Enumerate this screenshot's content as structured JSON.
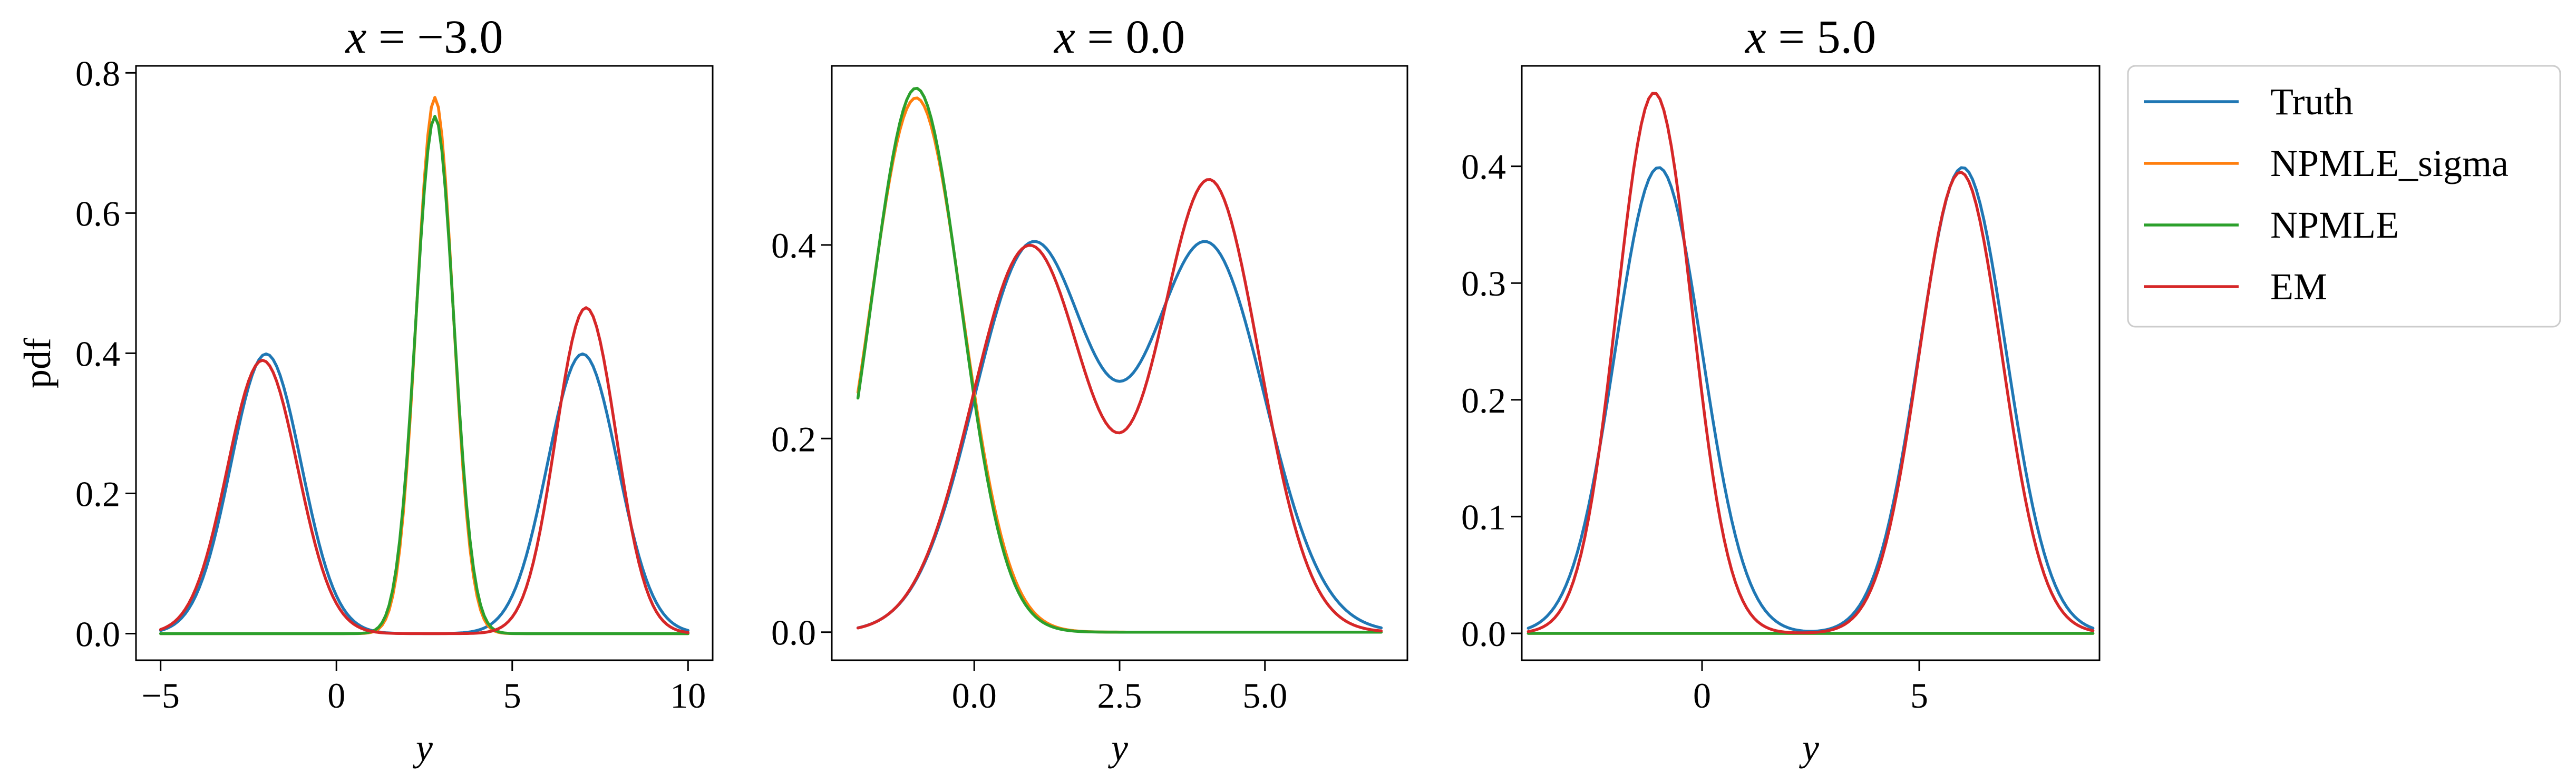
{
  "legend": {
    "position": "right, outside the third panel",
    "entries": [
      {
        "label": "Truth",
        "color": "#1f77b4"
      },
      {
        "label": "NPMLE_sigma",
        "color": "#ff7f0e"
      },
      {
        "label": "NPMLE",
        "color": "#2ca02c"
      },
      {
        "label": "EM",
        "color": "#d62728"
      }
    ]
  },
  "chart_data": [
    {
      "type": "line",
      "title": "x = −3.0",
      "title_parts": [
        "x",
        " = −3.0"
      ],
      "xlabel": "y",
      "ylabel": "pdf",
      "xlim": [
        -5.7,
        10.7
      ],
      "ylim": [
        -0.038,
        0.81
      ],
      "xticks": [
        -5,
        0,
        5,
        10
      ],
      "xtick_labels": [
        "−5",
        "0",
        "5",
        "10"
      ],
      "yticks": [
        0.0,
        0.2,
        0.4,
        0.6,
        0.8
      ],
      "ytick_labels": [
        "0.0",
        "0.2",
        "0.4",
        "0.6",
        "0.8"
      ],
      "grid": false,
      "x_range": [
        -5,
        10
      ],
      "series": [
        {
          "name": "Truth",
          "color": "#1f77b4",
          "components": [
            {
              "weight": 1.0,
              "mean": -2.0,
              "sd": 1.0,
              "peak": 0.399
            },
            {
              "weight": 1.0,
              "mean": 7.0,
              "sd": 1.0,
              "peak": 0.399
            }
          ]
        },
        {
          "name": "NPMLE_sigma",
          "color": "#ff7f0e",
          "components": [
            {
              "weight": 1.0,
              "mean": 2.8,
              "sd": 0.52,
              "peak": 0.765
            }
          ]
        },
        {
          "name": "NPMLE",
          "color": "#2ca02c",
          "components": [
            {
              "weight": 1.0,
              "mean": 2.8,
              "sd": 0.54,
              "peak": 0.738
            }
          ]
        },
        {
          "name": "EM",
          "color": "#d62728",
          "components": [
            {
              "weight": 1.0,
              "mean": -2.1,
              "sd": 1.0,
              "peak": 0.39
            },
            {
              "weight": 1.0,
              "mean": 7.1,
              "sd": 0.86,
              "peak": 0.465
            }
          ]
        }
      ]
    },
    {
      "type": "line",
      "title": "x = 0.0",
      "title_parts": [
        "x",
        " = 0.0"
      ],
      "xlabel": "y",
      "ylabel": "",
      "xlim": [
        -2.45,
        7.45
      ],
      "ylim": [
        -0.029,
        0.585
      ],
      "xticks": [
        0.0,
        2.5,
        5.0
      ],
      "xtick_labels": [
        "0.0",
        "2.5",
        "5.0"
      ],
      "yticks": [
        0.0,
        0.2,
        0.4
      ],
      "ytick_labels": [
        "0.0",
        "0.2",
        "0.4"
      ],
      "grid": false,
      "x_range": [
        -2.0,
        7.0
      ],
      "series": [
        {
          "name": "Truth",
          "color": "#1f77b4",
          "components": [
            {
              "weight": 1.0,
              "mean": 1.0,
              "sd": 1.0,
              "peak": 0.399
            },
            {
              "weight": 1.0,
              "mean": 4.0,
              "sd": 1.0,
              "peak": 0.399
            }
          ]
        },
        {
          "name": "NPMLE_sigma",
          "color": "#ff7f0e",
          "components": [
            {
              "weight": 1.0,
              "mean": -1.0,
              "sd": 0.79,
              "peak": 0.552
            }
          ]
        },
        {
          "name": "NPMLE",
          "color": "#2ca02c",
          "components": [
            {
              "weight": 1.0,
              "mean": -1.0,
              "sd": 0.77,
              "peak": 0.562
            }
          ]
        },
        {
          "name": "EM",
          "color": "#d62728",
          "components": [
            {
              "weight": 1.0,
              "mean": 0.95,
              "sd": 0.98,
              "peak": 0.399
            },
            {
              "weight": 1.0,
              "mean": 4.05,
              "sd": 0.86,
              "peak": 0.465
            }
          ]
        }
      ]
    },
    {
      "type": "line",
      "title": "x = 5.0",
      "title_parts": [
        "x",
        " = 5.0"
      ],
      "xlabel": "y",
      "ylabel": "",
      "xlim": [
        -4.15,
        9.15
      ],
      "ylim": [
        -0.023,
        0.486
      ],
      "xticks": [
        0,
        5
      ],
      "xtick_labels": [
        "0",
        "5"
      ],
      "yticks": [
        0.0,
        0.1,
        0.2,
        0.3,
        0.4
      ],
      "ytick_labels": [
        "0.0",
        "0.1",
        "0.2",
        "0.3",
        "0.4"
      ],
      "grid": false,
      "x_range": [
        -4.0,
        9.0
      ],
      "series": [
        {
          "name": "Truth",
          "color": "#1f77b4",
          "components": [
            {
              "weight": 1.0,
              "mean": -1.0,
              "sd": 1.0,
              "peak": 0.399
            },
            {
              "weight": 1.0,
              "mean": 6.0,
              "sd": 1.0,
              "peak": 0.399
            }
          ]
        },
        {
          "name": "NPMLE_sigma",
          "color": "#ff7f0e",
          "components": []
        },
        {
          "name": "NPMLE",
          "color": "#2ca02c",
          "components": []
        },
        {
          "name": "EM",
          "color": "#d62728",
          "components": [
            {
              "weight": 1.0,
              "mean": -1.1,
              "sd": 0.86,
              "peak": 0.463
            },
            {
              "weight": 1.0,
              "mean": 5.95,
              "sd": 0.95,
              "peak": 0.395
            }
          ]
        }
      ]
    }
  ]
}
